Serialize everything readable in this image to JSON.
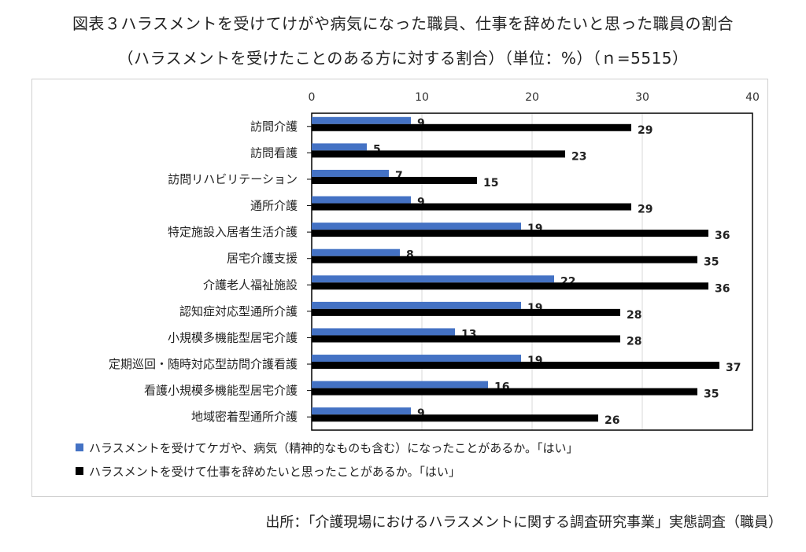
{
  "title": "図表３ハラスメントを受けてけがや病気になった職員、仕事を辞めたいと思った職員の割合",
  "subtitle": "（ハラスメントを受けたことのある方に対する割合）（単位：%）（ｎ=5515）",
  "source": "出所：「介護現場におけるハラスメントに関する調査研究事業」実態調査（職員）",
  "colors": {
    "blue": "#4472C4",
    "black": "#000000"
  },
  "chart_data": {
    "type": "bar",
    "orientation": "horizontal",
    "xlim": [
      0,
      40
    ],
    "xticks": [
      "0",
      "10",
      "20",
      "30",
      "40"
    ],
    "categories": [
      "訪問介護",
      "訪問看護",
      "訪問リハビリテーション",
      "通所介護",
      "特定施設入居者生活介護",
      "居宅介護支援",
      "介護老人福祉施設",
      "認知症対応型通所介護",
      "小規模多機能型居宅介護",
      "定期巡回・随時対応型訪問介護看護",
      "看護小規模多機能型居宅介護",
      "地域密着型通所介護"
    ],
    "series": [
      {
        "name": "ハラスメントを受けてケガや、病気（精神的なものも含む）になったことがあるか。「はい」",
        "color": "#4472C4",
        "values": [
          9,
          5,
          7,
          9,
          19,
          8,
          22,
          19,
          13,
          19,
          16,
          9
        ]
      },
      {
        "name": "ハラスメントを受けて仕事を辞めたいと思ったことがあるか。「はい」",
        "color": "#000000",
        "values": [
          29,
          23,
          15,
          29,
          36,
          35,
          36,
          28,
          28,
          37,
          35,
          26
        ]
      }
    ],
    "legend_position": "bottom"
  }
}
